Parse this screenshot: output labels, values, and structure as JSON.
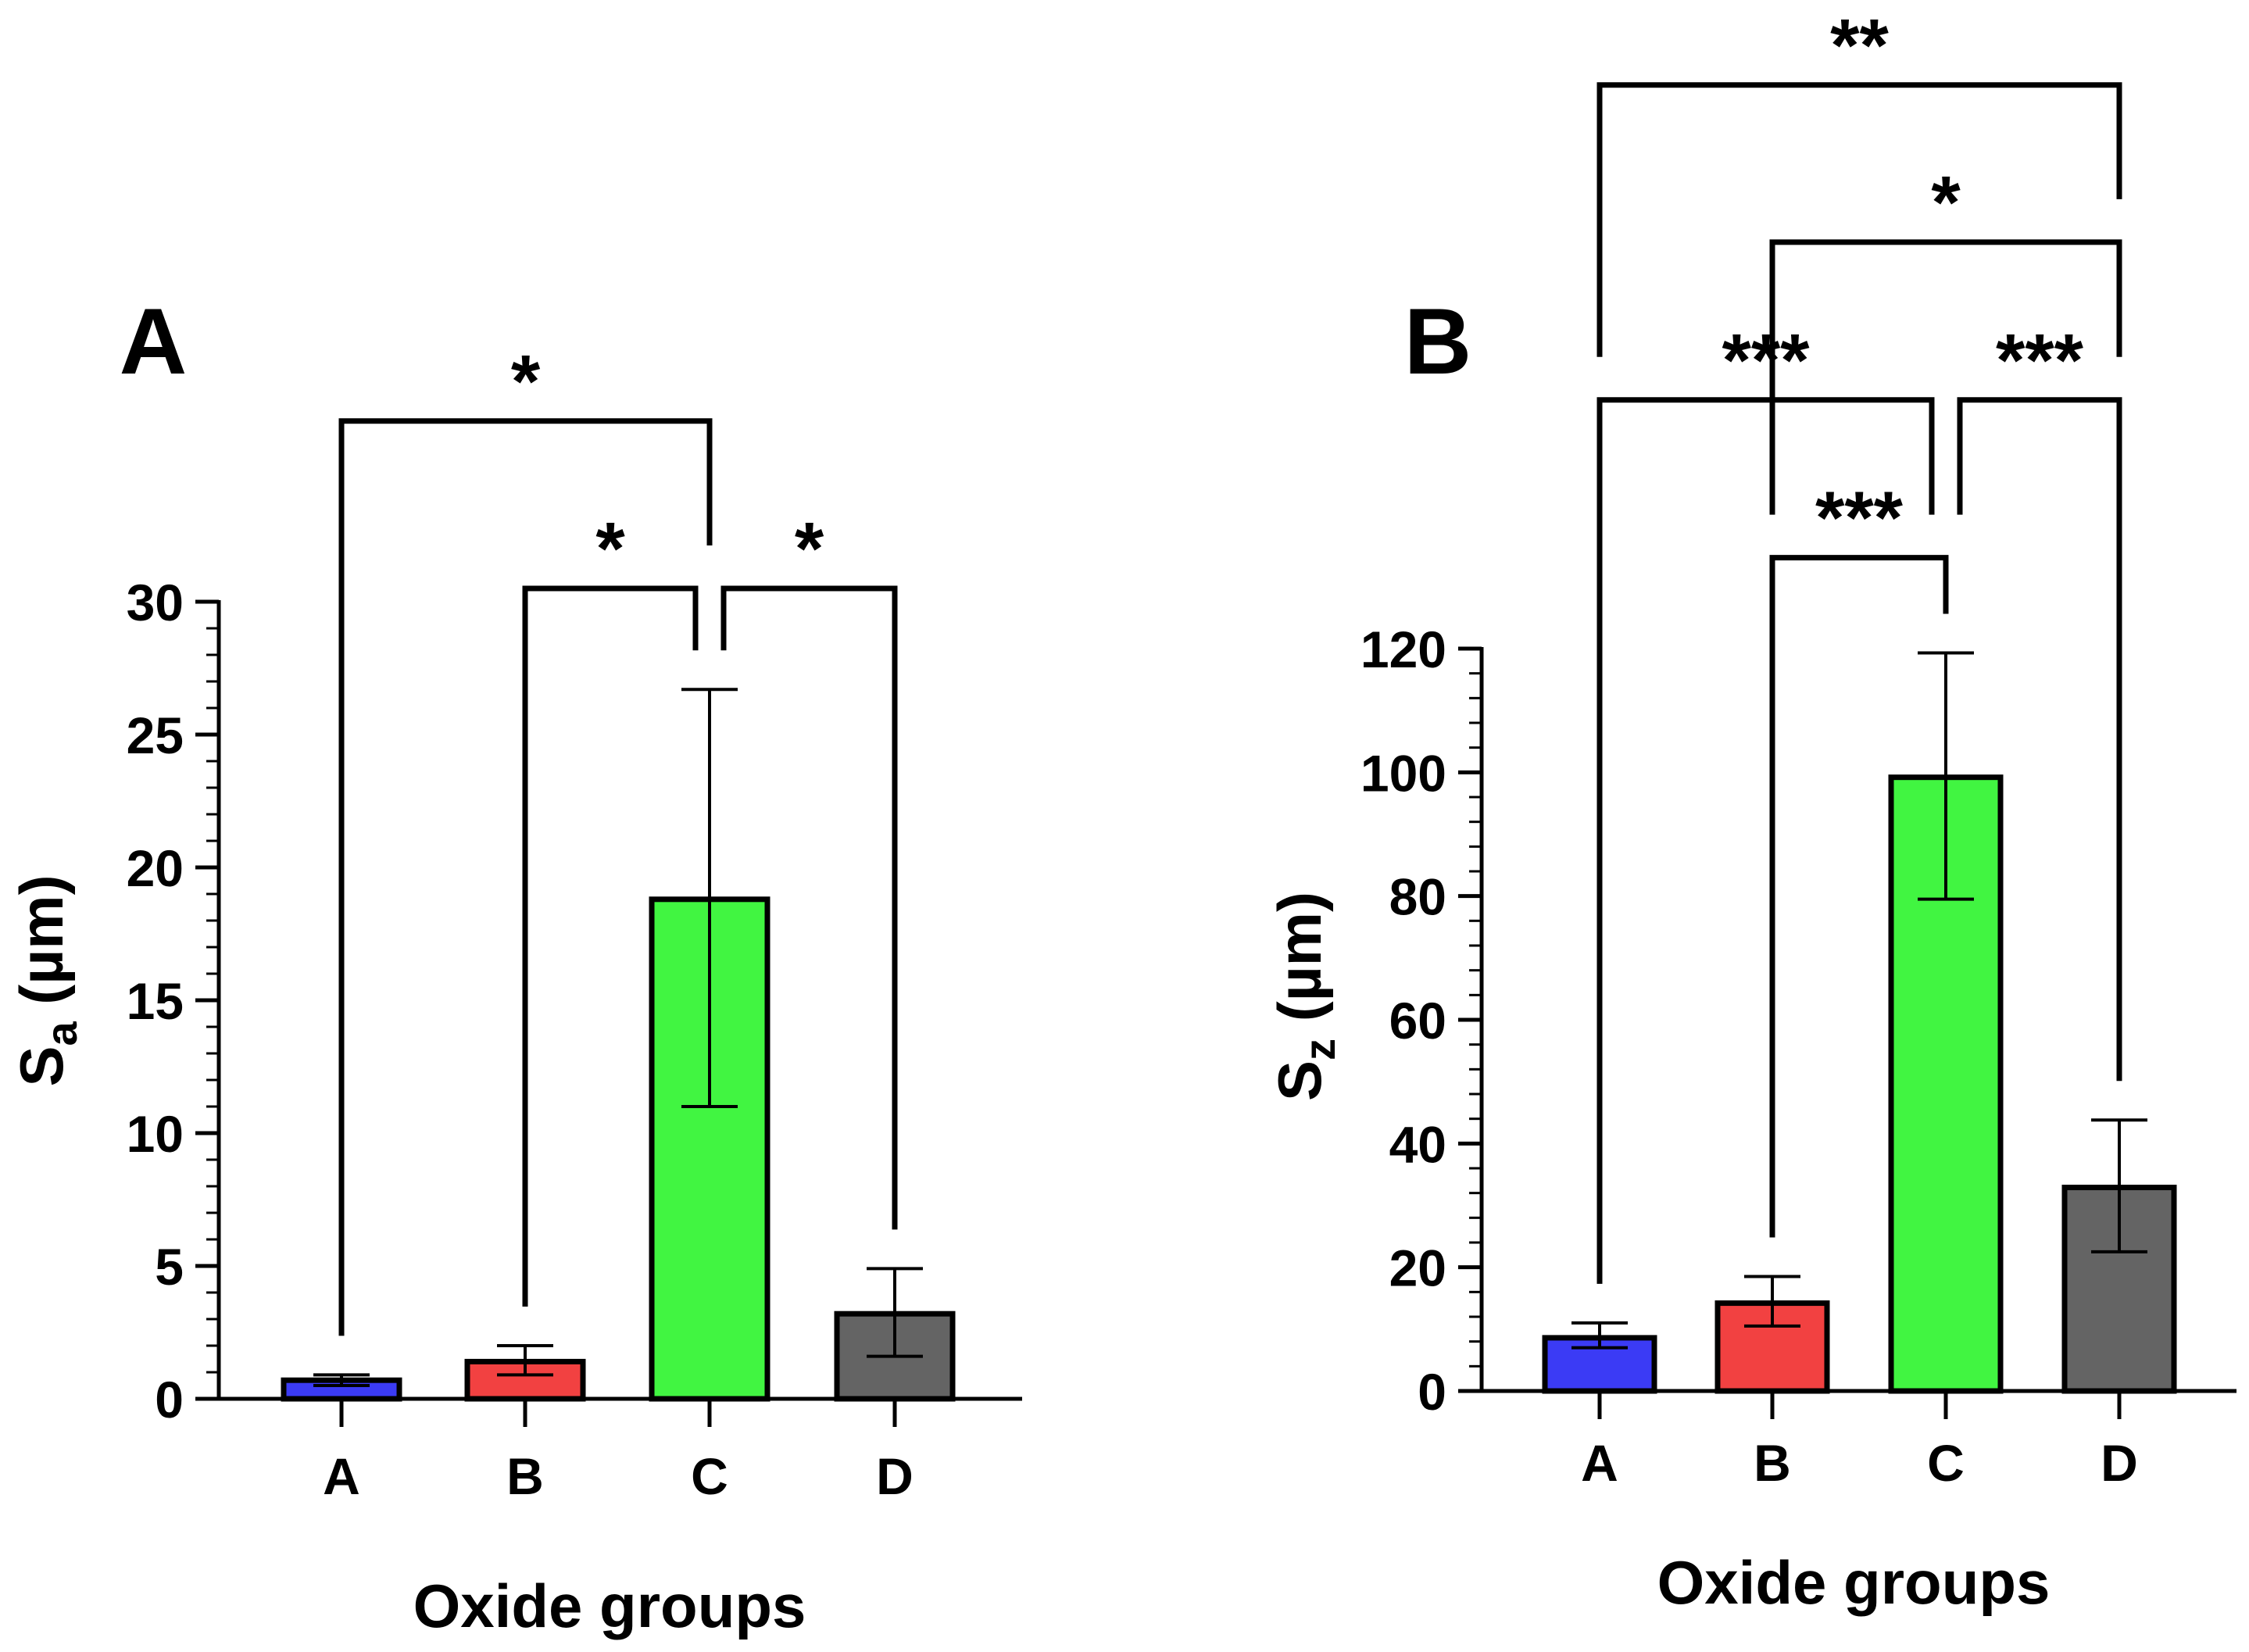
{
  "chart_data": [
    {
      "type": "bar",
      "panel_label": "A",
      "categories": [
        "A",
        "B",
        "C",
        "D"
      ],
      "values": [
        0.7,
        1.4,
        18.8,
        3.2
      ],
      "error": [
        {
          "low": 0.5,
          "high": 0.9
        },
        {
          "low": 0.9,
          "high": 2.0
        },
        {
          "low": 11.0,
          "high": 26.7
        },
        {
          "low": 1.6,
          "high": 4.9
        }
      ],
      "colors": [
        "#3b3bf5",
        "#f24141",
        "#41f541",
        "#646464"
      ],
      "ylim": [
        0,
        30
      ],
      "yticks": [
        0,
        5,
        10,
        15,
        20,
        25,
        30
      ],
      "ytick_labels": [
        "0",
        "5",
        "10",
        "15",
        "20",
        "25",
        "30"
      ],
      "minor_step": 1,
      "ylabel_main": "S",
      "ylabel_sub": "a",
      "ylabel_unit": " (µm)",
      "xlabel": "Oxide groups",
      "significance": [
        {
          "from": 0,
          "to": 2,
          "label": "*",
          "drop_left": 0,
          "drop_right": 2,
          "y": 36.8
        },
        {
          "from": 1,
          "to": 2,
          "label": "*",
          "y": 30.5
        },
        {
          "from": 2,
          "to": 3,
          "label": "*",
          "y": 30.5
        }
      ]
    },
    {
      "type": "bar",
      "panel_label": "B",
      "categories": [
        "A",
        "B",
        "C",
        "D"
      ],
      "values": [
        8.6,
        14.2,
        99.2,
        32.9
      ],
      "error": [
        {
          "low": 7.0,
          "high": 11.0
        },
        {
          "low": 10.5,
          "high": 18.5
        },
        {
          "low": 79.5,
          "high": 119.3
        },
        {
          "low": 22.5,
          "high": 43.8
        }
      ],
      "colors": [
        "#3b3bf5",
        "#f24141",
        "#41f541",
        "#646464"
      ],
      "ylim": [
        0,
        120
      ],
      "yticks": [
        0,
        20,
        40,
        60,
        80,
        100,
        120
      ],
      "ytick_labels": [
        "0",
        "20",
        "40",
        "60",
        "80",
        "100",
        "120"
      ],
      "minor_step": 4,
      "ylabel_main": "S",
      "ylabel_sub": "z",
      "ylabel_unit": " (µm)",
      "xlabel": "Oxide groups",
      "significance": [
        {
          "from": 1,
          "to": 2,
          "label": "***",
          "y": 134.7
        },
        {
          "from": 0,
          "to": 2,
          "label": "***",
          "y": 160.2
        },
        {
          "from": 2,
          "to": 3,
          "label": "***",
          "y": 160.2
        },
        {
          "from": 1,
          "to": 3,
          "label": "*",
          "y": 185.7
        },
        {
          "from": 0,
          "to": 3,
          "label": "**",
          "y": 211.1
        }
      ]
    }
  ]
}
